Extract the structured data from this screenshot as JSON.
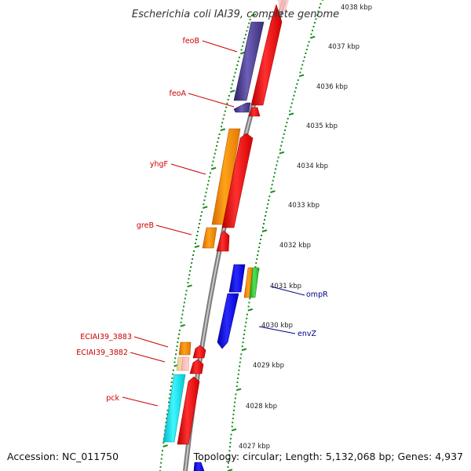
{
  "title": "Escherichia coli IAI39, complete genome",
  "footer": {
    "accession": "Accession: NC_011750",
    "summary": "Topology: circular; Length: 5,132,068 bp; Genes: 4,937"
  },
  "colors": {
    "backbone": "#8c8c8c",
    "scale_dots": "#1a8a1a",
    "forward_label": "#cc0000",
    "reverse_label": "#00008b",
    "cds_red": "#ff1a1a",
    "feoB": "#4b3b8f",
    "yhgF": "#ff8c00",
    "reverse_blue": "#1010ee",
    "ompR_green": "#33cc33",
    "pck_cyan": "#00e5ee"
  },
  "scale": {
    "unit": "kbp",
    "tick_labels": [
      "4038 kbp",
      "4037 kbp",
      "4036 kbp",
      "4035 kbp",
      "4034 kbp",
      "4033 kbp",
      "4032 kbp",
      "4031 kbp",
      "4030 kbp",
      "4029 kbp",
      "4028 kbp",
      "4027 kbp"
    ]
  },
  "genes": {
    "forward": [
      "feoB",
      "feoA",
      "yhgF",
      "greB",
      "ECIAI39_3883",
      "ECIAI39_3882",
      "pck"
    ],
    "reverse": [
      "ompR",
      "envZ"
    ]
  }
}
